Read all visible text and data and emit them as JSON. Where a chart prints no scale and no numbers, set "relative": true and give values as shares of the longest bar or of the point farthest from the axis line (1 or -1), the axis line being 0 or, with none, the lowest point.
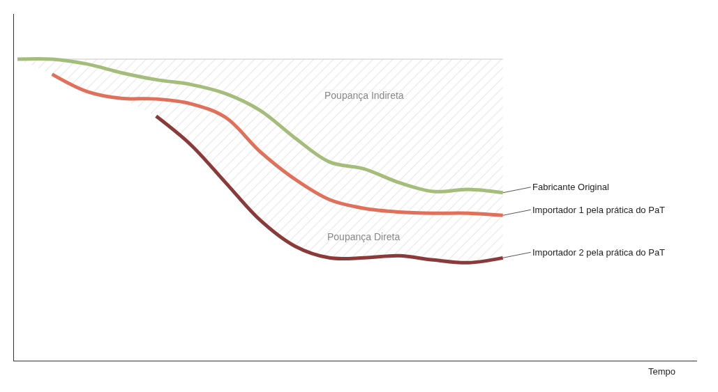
{
  "chart_data": {
    "type": "line",
    "relative": true,
    "legend": false,
    "marker": "none",
    "categories": [
      null,
      null,
      null,
      null,
      null,
      null,
      null,
      null,
      null,
      null,
      null,
      null,
      null,
      null,
      null
    ],
    "annotations": [
      "Poupança Indireta",
      "Poupança Direta",
      "Tempo"
    ],
    "series": [
      {
        "type": "area",
        "color": "#c8c8c8",
        "values": [
          1,
          1,
          1,
          1,
          1,
          1,
          1,
          1,
          1,
          1,
          1,
          1,
          1,
          1,
          1
        ]
      },
      {
        "name": "Fabricante Original",
        "color": "#a5bd7a",
        "values": [
          1,
          1,
          0.984,
          0.955,
          0.932,
          0.916,
          0.886,
          0.83,
          0.739,
          0.659,
          0.636,
          0.591,
          0.561,
          0.568,
          0.557
        ]
      },
      {
        "name": "Importador 1 pela prática do PaT",
        "color": "#e0705a",
        "values": [
          null,
          0.95,
          0.893,
          0.87,
          0.868,
          0.852,
          0.807,
          0.693,
          0.602,
          0.534,
          0.505,
          0.493,
          0.489,
          0.489,
          0.482
        ]
      },
      {
        "name": "Importador 2 pela prática do PaT",
        "color": "#8b3a3a",
        "values": [
          null,
          null,
          null,
          null,
          0.811,
          0.716,
          0.591,
          0.466,
          0.38,
          0.341,
          0.341,
          0.348,
          0.334,
          0.325,
          0.341
        ]
      }
    ]
  }
}
